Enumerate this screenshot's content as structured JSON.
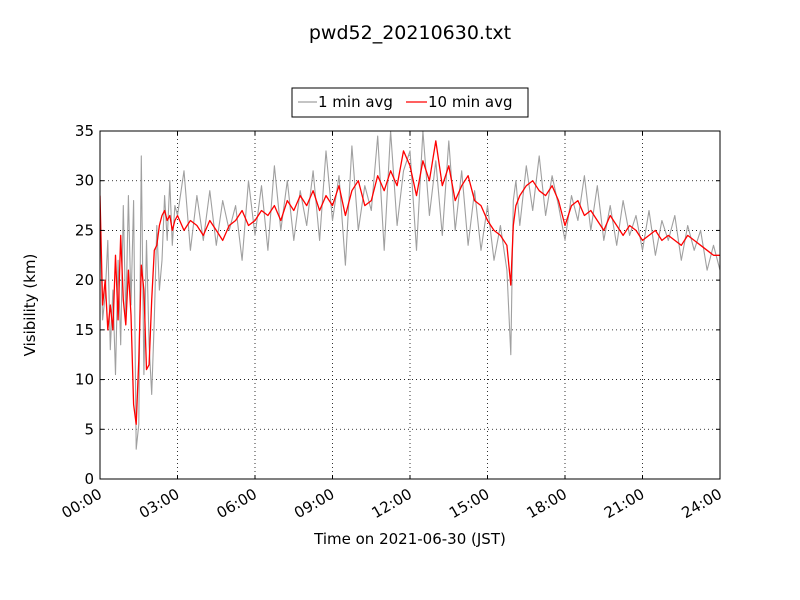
{
  "chart_data": {
    "type": "line",
    "title": "pwd52_20210630.txt",
    "xlabel": "Time on 2021-06-30 (JST)",
    "ylabel": "Visibility (km)",
    "x_unit": "hours (JST)",
    "xlim": [
      0,
      24
    ],
    "ylim": [
      0,
      35
    ],
    "xticks": [
      0,
      3,
      6,
      9,
      12,
      15,
      18,
      21,
      24
    ],
    "xtick_labels": [
      "00:00",
      "03:00",
      "06:00",
      "09:00",
      "12:00",
      "15:00",
      "18:00",
      "21:00",
      "24:00"
    ],
    "yticks": [
      0,
      5,
      10,
      15,
      20,
      25,
      30,
      35
    ],
    "ytick_labels": [
      "0",
      "5",
      "10",
      "15",
      "20",
      "25",
      "30",
      "35"
    ],
    "grid": true,
    "legend_position": "top-center",
    "series": [
      {
        "name": "1 min avg",
        "color": "#a0a0a0",
        "x": [
          0.0,
          0.1,
          0.2,
          0.3,
          0.4,
          0.5,
          0.6,
          0.7,
          0.8,
          0.9,
          1.0,
          1.1,
          1.2,
          1.3,
          1.4,
          1.5,
          1.6,
          1.7,
          1.8,
          1.9,
          2.0,
          2.1,
          2.2,
          2.3,
          2.4,
          2.5,
          2.6,
          2.7,
          2.8,
          2.9,
          3.0,
          3.25,
          3.5,
          3.75,
          4.0,
          4.25,
          4.5,
          4.75,
          5.0,
          5.25,
          5.5,
          5.75,
          6.0,
          6.25,
          6.5,
          6.75,
          7.0,
          7.25,
          7.5,
          7.75,
          8.0,
          8.25,
          8.5,
          8.75,
          9.0,
          9.25,
          9.5,
          9.75,
          10.0,
          10.25,
          10.5,
          10.75,
          11.0,
          11.25,
          11.5,
          11.75,
          12.0,
          12.25,
          12.5,
          12.75,
          13.0,
          13.25,
          13.5,
          13.75,
          14.0,
          14.25,
          14.5,
          14.75,
          15.0,
          15.25,
          15.5,
          15.75,
          15.9,
          16.0,
          16.1,
          16.25,
          16.5,
          16.75,
          17.0,
          17.25,
          17.5,
          17.75,
          18.0,
          18.25,
          18.5,
          18.75,
          19.0,
          19.25,
          19.5,
          19.75,
          20.0,
          20.25,
          20.5,
          20.75,
          21.0,
          21.25,
          21.5,
          21.75,
          22.0,
          22.25,
          22.5,
          22.75,
          23.0,
          23.25,
          23.5,
          23.75,
          24.0
        ],
        "y": [
          27.0,
          16.0,
          18.5,
          24.0,
          13.0,
          19.0,
          10.5,
          22.0,
          13.5,
          27.5,
          16.0,
          28.5,
          17.5,
          28.0,
          3.0,
          5.5,
          32.5,
          10.5,
          24.0,
          13.5,
          8.5,
          16.0,
          25.5,
          19.0,
          22.0,
          28.5,
          24.0,
          30.0,
          23.5,
          27.5,
          26.5,
          31.0,
          23.0,
          28.5,
          24.0,
          29.0,
          23.5,
          28.0,
          25.0,
          27.5,
          22.0,
          30.0,
          24.5,
          29.5,
          23.0,
          31.5,
          25.0,
          30.0,
          24.0,
          29.0,
          25.5,
          31.0,
          24.0,
          33.0,
          26.0,
          30.5,
          21.5,
          33.5,
          25.0,
          29.5,
          27.0,
          34.5,
          23.0,
          35.0,
          25.5,
          31.0,
          33.0,
          23.0,
          35.0,
          26.5,
          32.0,
          24.5,
          34.0,
          25.0,
          31.0,
          23.5,
          29.0,
          23.0,
          27.5,
          22.0,
          25.5,
          21.0,
          12.5,
          28.0,
          30.0,
          25.5,
          31.5,
          27.0,
          32.5,
          26.5,
          30.5,
          27.5,
          24.0,
          28.5,
          26.0,
          30.5,
          25.0,
          29.5,
          24.0,
          27.5,
          23.5,
          28.0,
          24.5,
          26.5,
          23.0,
          27.0,
          22.5,
          26.0,
          24.0,
          26.5,
          22.0,
          25.5,
          23.0,
          25.0,
          21.0,
          23.5,
          21.0
        ]
      },
      {
        "name": "10 min avg",
        "color": "#ff0000",
        "x": [
          0.0,
          0.1,
          0.2,
          0.3,
          0.4,
          0.5,
          0.6,
          0.7,
          0.8,
          0.9,
          1.0,
          1.1,
          1.2,
          1.3,
          1.4,
          1.5,
          1.6,
          1.7,
          1.8,
          1.9,
          2.0,
          2.1,
          2.2,
          2.3,
          2.4,
          2.5,
          2.6,
          2.7,
          2.8,
          2.9,
          3.0,
          3.25,
          3.5,
          3.75,
          4.0,
          4.25,
          4.5,
          4.75,
          5.0,
          5.25,
          5.5,
          5.75,
          6.0,
          6.25,
          6.5,
          6.75,
          7.0,
          7.25,
          7.5,
          7.75,
          8.0,
          8.25,
          8.5,
          8.75,
          9.0,
          9.25,
          9.5,
          9.75,
          10.0,
          10.25,
          10.5,
          10.75,
          11.0,
          11.25,
          11.5,
          11.75,
          12.0,
          12.25,
          12.5,
          12.75,
          13.0,
          13.25,
          13.5,
          13.75,
          14.0,
          14.25,
          14.5,
          14.75,
          15.0,
          15.25,
          15.5,
          15.75,
          15.9,
          16.0,
          16.1,
          16.25,
          16.5,
          16.75,
          17.0,
          17.25,
          17.5,
          17.75,
          18.0,
          18.25,
          18.5,
          18.75,
          19.0,
          19.25,
          19.5,
          19.75,
          20.0,
          20.25,
          20.5,
          20.75,
          21.0,
          21.25,
          21.5,
          21.75,
          22.0,
          22.25,
          22.5,
          22.75,
          23.0,
          23.25,
          23.5,
          23.75,
          24.0
        ],
        "y": [
          28.5,
          17.5,
          20.0,
          15.0,
          17.5,
          15.0,
          22.5,
          16.0,
          24.5,
          18.0,
          15.5,
          21.0,
          16.5,
          7.5,
          5.5,
          12.0,
          21.5,
          19.0,
          11.0,
          11.5,
          18.0,
          23.0,
          23.5,
          25.5,
          26.5,
          27.0,
          26.0,
          26.5,
          25.0,
          26.0,
          26.5,
          25.0,
          26.0,
          25.5,
          24.5,
          26.0,
          25.0,
          24.0,
          25.5,
          26.0,
          27.0,
          25.5,
          26.0,
          27.0,
          26.5,
          27.5,
          26.0,
          28.0,
          27.0,
          28.5,
          27.5,
          29.0,
          27.0,
          28.5,
          27.5,
          29.5,
          26.5,
          29.0,
          30.0,
          27.5,
          28.0,
          30.5,
          29.0,
          31.0,
          29.5,
          33.0,
          31.5,
          28.5,
          32.0,
          30.0,
          34.0,
          29.5,
          31.5,
          28.0,
          29.5,
          30.5,
          28.0,
          27.5,
          26.0,
          25.0,
          24.5,
          23.5,
          19.5,
          25.5,
          27.5,
          28.5,
          29.5,
          30.0,
          29.0,
          28.5,
          29.5,
          28.0,
          25.5,
          27.5,
          28.0,
          26.5,
          27.0,
          26.0,
          25.0,
          26.5,
          25.5,
          24.5,
          25.5,
          25.0,
          24.0,
          24.5,
          25.0,
          24.0,
          24.5,
          24.0,
          23.5,
          24.5,
          24.0,
          23.5,
          23.0,
          22.5,
          22.5
        ]
      }
    ]
  }
}
